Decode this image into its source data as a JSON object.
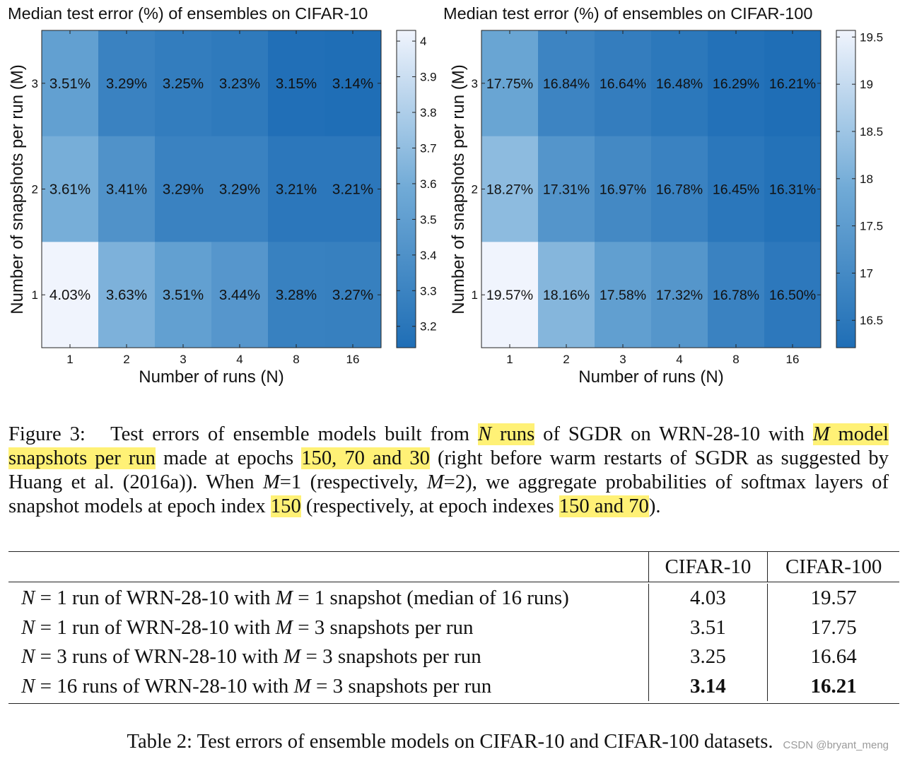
{
  "chart_data": [
    {
      "type": "heatmap",
      "title": "Median test error (%) of ensembles on CIFAR-10",
      "xlabel": "Number of runs (N)",
      "ylabel": "Number of snapshots per run (M)",
      "x_categories": [
        "1",
        "2",
        "3",
        "4",
        "8",
        "16"
      ],
      "y_categories": [
        "3",
        "2",
        "1"
      ],
      "values": [
        [
          3.51,
          3.29,
          3.25,
          3.23,
          3.15,
          3.14
        ],
        [
          3.61,
          3.41,
          3.29,
          3.29,
          3.21,
          3.21
        ],
        [
          4.03,
          3.63,
          3.51,
          3.44,
          3.28,
          3.27
        ]
      ],
      "cell_labels": [
        [
          "3.51%",
          "3.29%",
          "3.25%",
          "3.23%",
          "3.15%",
          "3.14%"
        ],
        [
          "3.61%",
          "3.41%",
          "3.29%",
          "3.29%",
          "3.21%",
          "3.21%"
        ],
        [
          "4.03%",
          "3.63%",
          "3.51%",
          "3.44%",
          "3.28%",
          "3.27%"
        ]
      ],
      "colorbar_range": [
        3.14,
        4.03
      ],
      "colorbar_ticks": [
        "4",
        "3.9",
        "3.8",
        "3.7",
        "3.6",
        "3.5",
        "3.4",
        "3.3",
        "3.2"
      ],
      "colorbar_tick_values": [
        4,
        3.9,
        3.8,
        3.7,
        3.6,
        3.5,
        3.4,
        3.3,
        3.2
      ]
    },
    {
      "type": "heatmap",
      "title": "Median test error (%) of ensembles on CIFAR-100",
      "xlabel": "Number of runs (N)",
      "ylabel": "Number of snapshots per run (M)",
      "x_categories": [
        "1",
        "2",
        "3",
        "4",
        "8",
        "16"
      ],
      "y_categories": [
        "3",
        "2",
        "1"
      ],
      "values": [
        [
          17.75,
          16.84,
          16.64,
          16.48,
          16.29,
          16.21
        ],
        [
          18.27,
          17.31,
          16.97,
          16.78,
          16.45,
          16.31
        ],
        [
          19.57,
          18.16,
          17.58,
          17.32,
          16.78,
          16.5
        ]
      ],
      "cell_labels": [
        [
          "17.75%",
          "16.84%",
          "16.64%",
          "16.48%",
          "16.29%",
          "16.21%"
        ],
        [
          "18.27%",
          "17.31%",
          "16.97%",
          "16.78%",
          "16.45%",
          "16.31%"
        ],
        [
          "19.57%",
          "18.16%",
          "17.58%",
          "17.32%",
          "16.78%",
          "16.50%"
        ]
      ],
      "colorbar_range": [
        16.21,
        19.57
      ],
      "colorbar_ticks": [
        "19.5",
        "19",
        "18.5",
        "18",
        "17.5",
        "17",
        "16.5"
      ],
      "colorbar_tick_values": [
        19.5,
        19,
        18.5,
        18,
        17.5,
        17,
        16.5
      ]
    }
  ],
  "colors": {
    "heat_low": "#1f6eb6",
    "heat_high": "#f0f4fd",
    "highlight": "#fff176"
  },
  "figure3": {
    "label": "Figure 3:",
    "text1": "Test errors of ensemble models built from",
    "hl_n": "N",
    "hl_runs": "runs",
    "text2": "of SGDR on WRN-28-10 with",
    "hl_m": "M",
    "hl_snapshots": "model snapshots per run",
    "text3": "made at epochs",
    "hl_epochs": "150, 70 and 30",
    "text4": "(right before warm restarts of SGDR as suggested by Huang et al. (2016a)). When",
    "m1": "M",
    "text5": "=1 (respectively,",
    "m2": "M",
    "text6": "=2), we aggregate probabilities of softmax layers of snapshot models at epoch index",
    "hl_150": "150",
    "text7": "(respectively, at epoch indexes",
    "hl_150_70": "150 and 70",
    "text8": ")."
  },
  "table2": {
    "headers": [
      "",
      "CIFAR-10",
      "CIFAR-100"
    ],
    "rows": [
      {
        "n": "N",
        "eq1": " = 1 run of WRN-28-10 with ",
        "m": "M",
        "eq2": " = 1 snapshot (median of 16 runs)",
        "c10": "4.03",
        "c100": "19.57"
      },
      {
        "n": "N",
        "eq1": " = 1 run of WRN-28-10 with ",
        "m": "M",
        "eq2": " = 3 snapshots per run",
        "c10": "3.51",
        "c100": "17.75"
      },
      {
        "n": "N",
        "eq1": " = 3 runs of WRN-28-10 with ",
        "m": "M",
        "eq2": " = 3 snapshots per run",
        "c10": "3.25",
        "c100": "16.64"
      },
      {
        "n": "N",
        "eq1": " = 16 runs of WRN-28-10 with ",
        "m": "M",
        "eq2": " = 3 snapshots per run",
        "c10": "3.14",
        "c100": "16.21"
      }
    ],
    "caption": "Table 2: Test errors of ensemble models on CIFAR-10 and CIFAR-100 datasets."
  },
  "watermark": "CSDN @bryant_meng"
}
